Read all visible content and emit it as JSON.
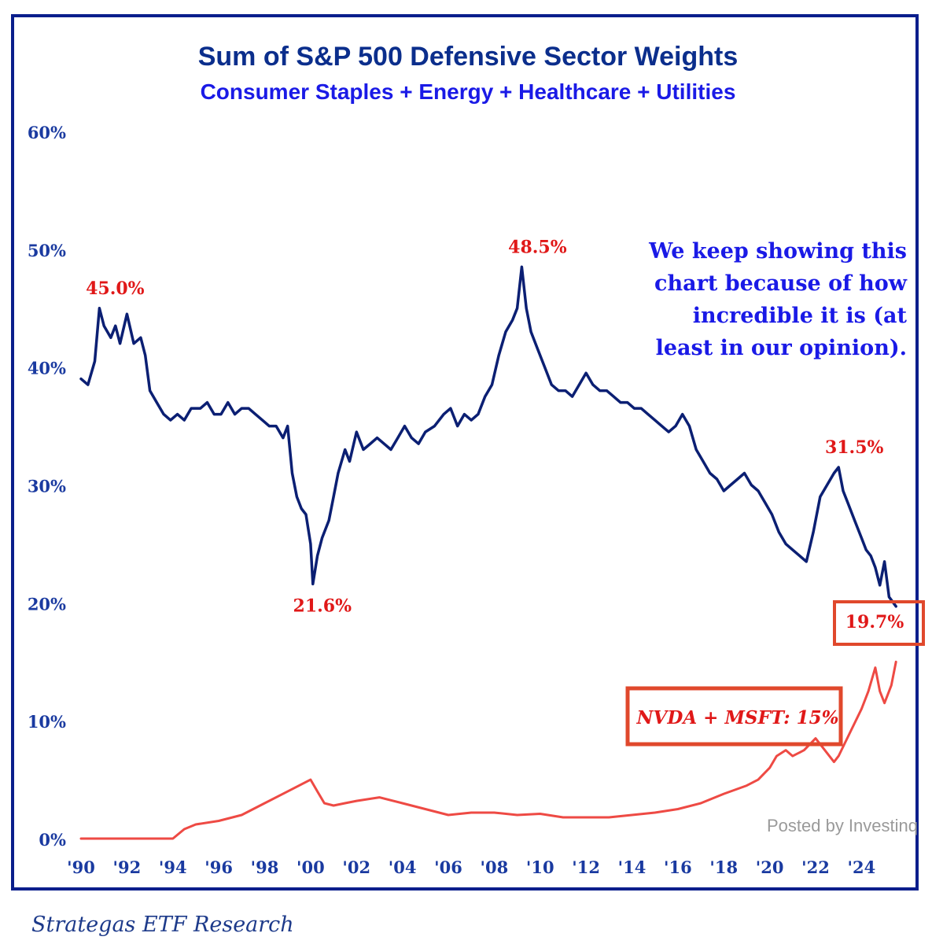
{
  "chart_data": {
    "type": "line",
    "title": "Sum of S&P 500 Defensive Sector Weights",
    "subtitle": "Consumer Staples + Energy + Healthcare + Utilities",
    "xlabel": "",
    "ylabel": "",
    "xlim": [
      1990,
      2025.7
    ],
    "ylim": [
      0,
      60
    ],
    "y_ticks": [
      0,
      10,
      20,
      30,
      40,
      50,
      60
    ],
    "y_tick_labels": [
      "0%",
      "10%",
      "20%",
      "30%",
      "40%",
      "50%",
      "60%"
    ],
    "x_ticks": [
      1990,
      1992,
      1994,
      1996,
      1998,
      2000,
      2002,
      2004,
      2006,
      2008,
      2010,
      2012,
      2014,
      2016,
      2018,
      2020,
      2022,
      2024
    ],
    "x_tick_labels": [
      "'90",
      "'92",
      "'94",
      "'96",
      "'98",
      "'00",
      "'02",
      "'04",
      "'06",
      "'08",
      "'10",
      "'12",
      "'14",
      "'16",
      "'18",
      "'20",
      "'22",
      "'24"
    ],
    "grid": false,
    "series": [
      {
        "name": "Defensive Sector Weights",
        "color": "#0b1f73",
        "x": [
          1990.0,
          1990.3,
          1990.6,
          1990.8,
          1991.0,
          1991.3,
          1991.5,
          1991.7,
          1992.0,
          1992.3,
          1992.6,
          1992.8,
          1993.0,
          1993.3,
          1993.6,
          1993.9,
          1994.2,
          1994.5,
          1994.8,
          1995.2,
          1995.5,
          1995.8,
          1996.1,
          1996.4,
          1996.7,
          1997.0,
          1997.3,
          1997.6,
          1997.9,
          1998.2,
          1998.5,
          1998.8,
          1999.0,
          1999.2,
          1999.4,
          1999.6,
          1999.8,
          2000.0,
          2000.1,
          2000.3,
          2000.5,
          2000.8,
          2001.0,
          2001.2,
          2001.5,
          2001.7,
          2002.0,
          2002.3,
          2002.6,
          2002.9,
          2003.2,
          2003.5,
          2003.8,
          2004.1,
          2004.4,
          2004.7,
          2005.0,
          2005.4,
          2005.8,
          2006.1,
          2006.4,
          2006.7,
          2007.0,
          2007.3,
          2007.6,
          2007.9,
          2008.2,
          2008.5,
          2008.8,
          2009.0,
          2009.2,
          2009.4,
          2009.6,
          2009.9,
          2010.2,
          2010.5,
          2010.8,
          2011.1,
          2011.4,
          2011.7,
          2012.0,
          2012.3,
          2012.6,
          2012.9,
          2013.2,
          2013.5,
          2013.8,
          2014.1,
          2014.4,
          2014.7,
          2015.0,
          2015.3,
          2015.6,
          2015.9,
          2016.2,
          2016.5,
          2016.8,
          2017.1,
          2017.4,
          2017.7,
          2018.0,
          2018.3,
          2018.6,
          2018.9,
          2019.2,
          2019.5,
          2019.8,
          2020.1,
          2020.4,
          2020.7,
          2021.0,
          2021.3,
          2021.6,
          2021.9,
          2022.2,
          2022.5,
          2022.8,
          2023.0,
          2023.2,
          2023.4,
          2023.7,
          2024.0,
          2024.2,
          2024.4,
          2024.6,
          2024.8,
          2025.0,
          2025.2,
          2025.5
        ],
        "values": [
          39.0,
          38.5,
          40.5,
          45.0,
          43.5,
          42.5,
          43.5,
          42.0,
          44.5,
          42.0,
          42.5,
          41.0,
          38.0,
          37.0,
          36.0,
          35.5,
          36.0,
          35.5,
          36.5,
          36.5,
          37.0,
          36.0,
          36.0,
          37.0,
          36.0,
          36.5,
          36.5,
          36.0,
          35.5,
          35.0,
          35.0,
          34.0,
          35.0,
          31.0,
          29.0,
          28.0,
          27.5,
          25.0,
          21.6,
          24.0,
          25.5,
          27.0,
          29.0,
          31.0,
          33.0,
          32.0,
          34.5,
          33.0,
          33.5,
          34.0,
          33.5,
          33.0,
          34.0,
          35.0,
          34.0,
          33.5,
          34.5,
          35.0,
          36.0,
          36.5,
          35.0,
          36.0,
          35.5,
          36.0,
          37.5,
          38.5,
          41.0,
          43.0,
          44.0,
          45.0,
          48.5,
          45.0,
          43.0,
          41.5,
          40.0,
          38.5,
          38.0,
          38.0,
          37.5,
          38.5,
          39.5,
          38.5,
          38.0,
          38.0,
          37.5,
          37.0,
          37.0,
          36.5,
          36.5,
          36.0,
          35.5,
          35.0,
          34.5,
          35.0,
          36.0,
          35.0,
          33.0,
          32.0,
          31.0,
          30.5,
          29.5,
          30.0,
          30.5,
          31.0,
          30.0,
          29.5,
          28.5,
          27.5,
          26.0,
          25.0,
          24.5,
          24.0,
          23.5,
          26.0,
          29.0,
          30.0,
          31.0,
          31.5,
          29.5,
          28.5,
          27.0,
          25.5,
          24.5,
          24.0,
          23.0,
          21.5,
          23.5,
          20.5,
          19.7
        ]
      },
      {
        "name": "NVDA + MSFT",
        "color": "#ee4a44",
        "x": [
          1990.0,
          1992.0,
          1994.0,
          1994.5,
          1995.0,
          1996.0,
          1997.0,
          1998.0,
          1999.0,
          2000.0,
          2000.3,
          2000.6,
          2001.0,
          2001.5,
          2002.0,
          2003.0,
          2004.0,
          2005.0,
          2006.0,
          2007.0,
          2008.0,
          2009.0,
          2010.0,
          2011.0,
          2012.0,
          2013.0,
          2014.0,
          2015.0,
          2016.0,
          2017.0,
          2018.0,
          2019.0,
          2019.5,
          2020.0,
          2020.3,
          2020.7,
          2021.0,
          2021.5,
          2022.0,
          2022.4,
          2022.8,
          2023.0,
          2023.5,
          2024.0,
          2024.3,
          2024.6,
          2024.8,
          2025.0,
          2025.3,
          2025.5
        ],
        "values": [
          0.0,
          0.0,
          0.0,
          0.8,
          1.2,
          1.5,
          2.0,
          3.0,
          4.0,
          5.0,
          4.0,
          3.0,
          2.8,
          3.0,
          3.2,
          3.5,
          3.0,
          2.5,
          2.0,
          2.2,
          2.2,
          2.0,
          2.1,
          1.8,
          1.8,
          1.8,
          2.0,
          2.2,
          2.5,
          3.0,
          3.8,
          4.5,
          5.0,
          6.0,
          7.0,
          7.5,
          7.0,
          7.5,
          8.5,
          7.5,
          6.5,
          7.0,
          9.0,
          11.0,
          12.5,
          14.5,
          12.5,
          11.5,
          13.0,
          15.0
        ]
      }
    ],
    "annotations": [
      {
        "text": "45.0%",
        "x": 1990.8,
        "y": 45.0,
        "color": "#e01818"
      },
      {
        "text": "21.6%",
        "x": 2000.1,
        "y": 21.6,
        "color": "#e01818"
      },
      {
        "text": "48.5%",
        "x": 2009.2,
        "y": 48.5,
        "color": "#e01818"
      },
      {
        "text": "31.5%",
        "x": 2023.0,
        "y": 31.5,
        "color": "#e01818"
      },
      {
        "text": "19.7%",
        "x": 2025.5,
        "y": 19.7,
        "color": "#e01818",
        "boxed": true
      },
      {
        "text": "NVDA + MSFT: 15%",
        "x": 2025.5,
        "y": 15.0,
        "color": "#e01818",
        "boxed": true,
        "italic": true
      }
    ],
    "note_lines": [
      "We keep showing this",
      "chart because of how",
      "incredible it is (at",
      "least in our opinion)."
    ]
  },
  "footer": {
    "source": "Strategas ETF Research",
    "credit": "Posted by Investinq"
  },
  "colors": {
    "title": "#0b2e8c",
    "subtitle": "#1a1ae6",
    "axis_text": "#1a3aa0",
    "note": "#1a1ae6",
    "highlight_box": "#e0482c"
  }
}
